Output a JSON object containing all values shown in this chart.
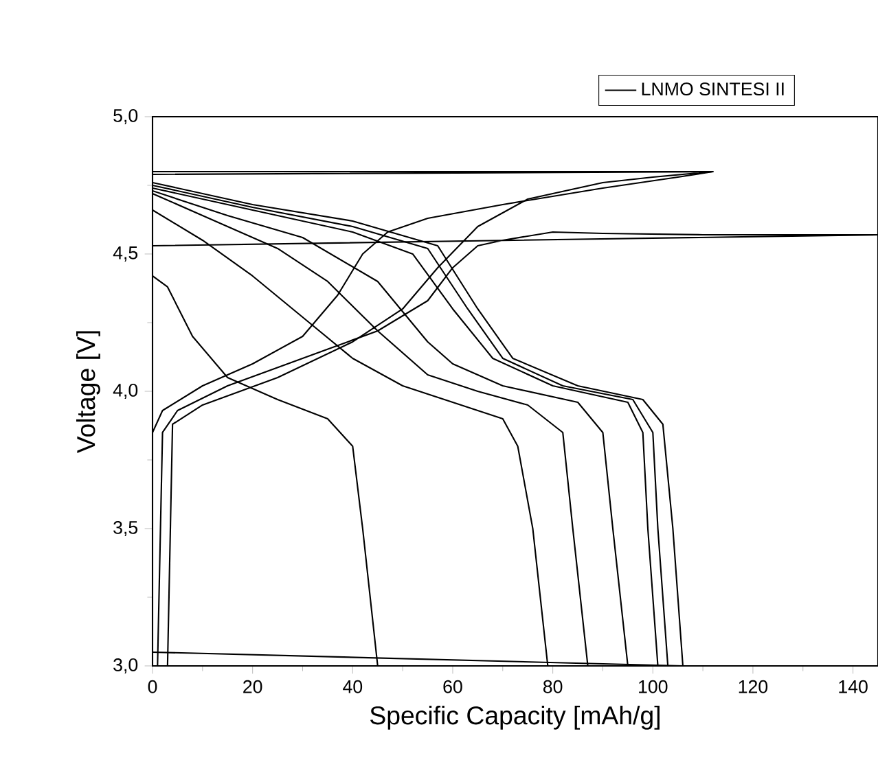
{
  "chart_data": {
    "type": "line",
    "xlabel": "Specific Capacity [mAh/g]",
    "ylabel": "Voltage [V]",
    "xlim": [
      0,
      145
    ],
    "ylim": [
      3.0,
      5.0
    ],
    "xticks": [
      0,
      20,
      40,
      60,
      80,
      100,
      120,
      140
    ],
    "yticks": [
      {
        "value": 3.0,
        "label": "3,0"
      },
      {
        "value": 3.5,
        "label": "3,5"
      },
      {
        "value": 4.0,
        "label": "4,0"
      },
      {
        "value": 4.5,
        "label": "4,5"
      },
      {
        "value": 5.0,
        "label": "5,0"
      }
    ],
    "legend": "top right",
    "line_style": "solid",
    "marker": "none",
    "series": [
      {
        "name": "LNMO SINTESI II",
        "color": "#000000",
        "x": [
          0,
          2,
          10,
          20,
          30,
          37,
          42,
          47,
          55,
          70,
          90,
          105,
          112,
          0
        ],
        "values": [
          3.85,
          3.93,
          4.02,
          4.1,
          4.2,
          4.35,
          4.5,
          4.58,
          4.63,
          4.68,
          4.74,
          4.78,
          4.8,
          4.8
        ]
      },
      {
        "color": "#000000",
        "x": [
          1,
          2,
          5,
          15,
          30,
          45,
          55,
          60,
          65,
          70,
          80,
          90,
          110,
          140,
          145,
          0
        ],
        "values": [
          3.0,
          3.85,
          3.93,
          4.02,
          4.12,
          4.22,
          4.33,
          4.45,
          4.53,
          4.55,
          4.58,
          4.575,
          4.57,
          4.57,
          4.57,
          4.53
        ]
      },
      {
        "color": "#000000",
        "x": [
          3,
          4,
          10,
          25,
          40,
          50,
          57,
          65,
          75,
          90,
          100,
          112,
          0
        ],
        "values": [
          3.0,
          3.88,
          3.95,
          4.05,
          4.18,
          4.3,
          4.45,
          4.6,
          4.7,
          4.76,
          4.78,
          4.8,
          4.79
        ]
      },
      {
        "color": "#000000",
        "x": [
          0,
          3,
          8,
          15,
          25,
          35,
          40,
          42,
          45
        ],
        "values": [
          4.42,
          4.38,
          4.2,
          4.05,
          3.97,
          3.9,
          3.8,
          3.5,
          3.0
        ]
      },
      {
        "color": "#000000",
        "x": [
          0,
          10,
          20,
          30,
          40,
          50,
          60,
          70,
          73,
          76,
          79
        ],
        "values": [
          4.66,
          4.55,
          4.42,
          4.27,
          4.12,
          4.02,
          3.96,
          3.9,
          3.8,
          3.5,
          3.0
        ]
      },
      {
        "color": "#000000",
        "x": [
          0,
          10,
          25,
          35,
          45,
          55,
          65,
          75,
          82,
          84,
          87
        ],
        "values": [
          4.72,
          4.64,
          4.52,
          4.4,
          4.22,
          4.06,
          4.0,
          3.95,
          3.85,
          3.5,
          3.0
        ]
      },
      {
        "color": "#000000",
        "x": [
          0,
          15,
          30,
          45,
          55,
          60,
          70,
          85,
          90,
          92,
          95
        ],
        "values": [
          4.73,
          4.64,
          4.56,
          4.4,
          4.18,
          4.1,
          4.02,
          3.96,
          3.85,
          3.5,
          3.0
        ]
      },
      {
        "color": "#000000",
        "x": [
          0,
          20,
          40,
          52,
          60,
          68,
          80,
          95,
          98,
          99,
          101
        ],
        "values": [
          4.74,
          4.66,
          4.58,
          4.5,
          4.3,
          4.12,
          4.02,
          3.96,
          3.85,
          3.5,
          3.0
        ]
      },
      {
        "color": "#000000",
        "x": [
          0,
          20,
          40,
          55,
          63,
          70,
          82,
          96,
          100,
          101,
          103
        ],
        "values": [
          4.75,
          4.67,
          4.6,
          4.52,
          4.3,
          4.12,
          4.02,
          3.97,
          3.85,
          3.5,
          3.0
        ]
      },
      {
        "color": "#000000",
        "x": [
          0,
          20,
          40,
          57,
          65,
          72,
          85,
          98,
          102,
          104,
          106,
          0
        ],
        "values": [
          4.76,
          4.68,
          4.62,
          4.53,
          4.3,
          4.12,
          4.02,
          3.97,
          3.88,
          3.5,
          3.0,
          3.05
        ]
      }
    ]
  }
}
